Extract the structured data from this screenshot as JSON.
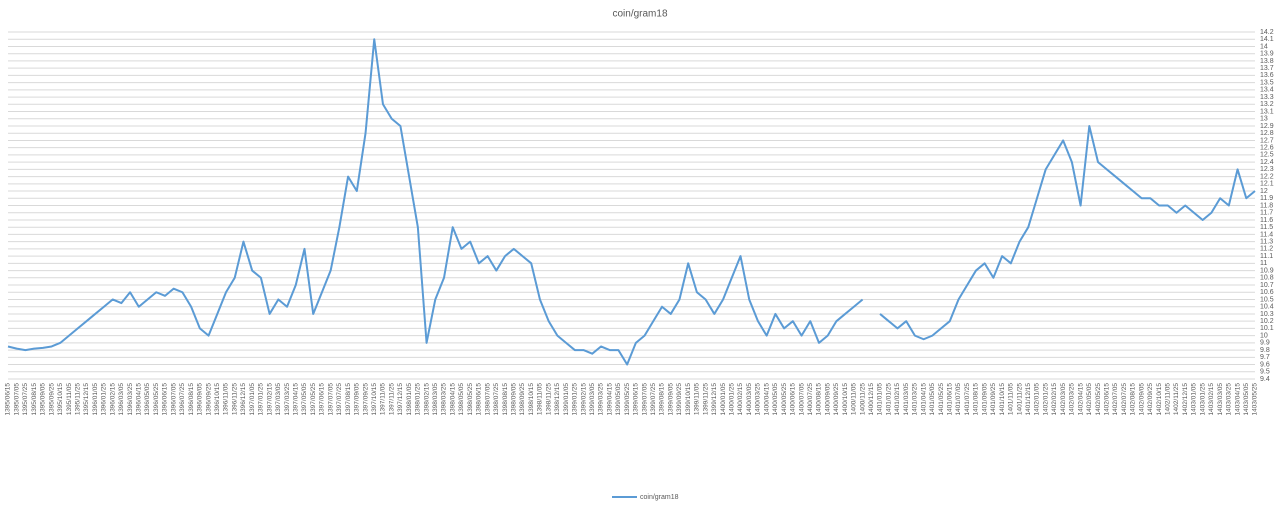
{
  "chart_data": {
    "type": "line",
    "title": "coin/gram18",
    "categories": [
      "1395/06/15",
      "1395/07/05",
      "1395/07/25",
      "1395/08/15",
      "1395/09/05",
      "1395/09/25",
      "1395/10/15",
      "1395/11/05",
      "1395/11/25",
      "1395/12/15",
      "1396/01/05",
      "1396/01/25",
      "1396/02/15",
      "1396/03/05",
      "1396/03/25",
      "1396/04/15",
      "1396/05/05",
      "1396/05/25",
      "1396/06/15",
      "1396/07/05",
      "1396/07/25",
      "1396/08/15",
      "1396/09/05",
      "1396/09/25",
      "1396/10/15",
      "1396/11/05",
      "1396/11/25",
      "1396/12/15",
      "1397/01/05",
      "1397/01/25",
      "1397/02/15",
      "1397/03/05",
      "1397/03/25",
      "1397/04/15",
      "1397/05/05",
      "1397/05/25",
      "1397/06/15",
      "1397/07/05",
      "1397/07/25",
      "1397/08/15",
      "1397/09/05",
      "1397/09/25",
      "1397/10/15",
      "1397/11/05",
      "1397/11/25",
      "1397/12/15",
      "1398/01/05",
      "1398/01/25",
      "1398/02/15",
      "1398/03/05",
      "1398/03/25",
      "1398/04/15",
      "1398/05/05",
      "1398/05/25",
      "1398/06/15",
      "1398/07/05",
      "1398/07/25",
      "1398/08/15",
      "1398/09/05",
      "1398/09/25",
      "1398/10/15",
      "1398/11/05",
      "1398/11/25",
      "1398/12/15",
      "1399/01/05",
      "1399/01/25",
      "1399/02/15",
      "1399/03/05",
      "1399/03/25",
      "1399/04/15",
      "1399/05/05",
      "1399/05/25",
      "1399/06/15",
      "1399/07/05",
      "1399/07/25",
      "1399/08/15",
      "1399/09/05",
      "1399/09/25",
      "1399/10/15",
      "1399/11/05",
      "1399/11/25",
      "1399/12/15",
      "1400/01/05",
      "1400/01/25",
      "1400/02/15",
      "1400/03/05",
      "1400/03/25",
      "1400/04/15",
      "1400/05/05",
      "1400/05/25",
      "1400/06/15",
      "1400/07/05",
      "1400/07/25",
      "1400/08/15",
      "1400/09/05",
      "1400/09/25",
      "1400/10/15",
      "1400/11/05",
      "1400/11/25",
      "1400/12/15",
      "1401/01/05",
      "1401/01/25",
      "1401/02/15",
      "1401/03/05",
      "1401/03/25",
      "1401/04/15",
      "1401/05/05",
      "1401/05/25",
      "1401/06/15",
      "1401/07/05",
      "1401/07/25",
      "1401/08/15",
      "1401/09/05",
      "1401/09/25",
      "1401/10/15",
      "1401/11/05",
      "1401/11/25",
      "1401/12/15",
      "1402/01/05",
      "1402/01/25",
      "1402/02/15",
      "1402/03/05",
      "1402/03/25",
      "1402/04/15",
      "1402/05/05",
      "1402/05/25",
      "1402/06/15",
      "1402/07/05",
      "1402/07/25",
      "1402/08/15",
      "1402/09/05",
      "1402/09/25",
      "1402/10/15",
      "1402/11/05",
      "1402/11/25",
      "1402/12/15",
      "1403/01/05",
      "1403/01/25",
      "1403/02/15",
      "1403/03/05",
      "1403/03/25",
      "1403/04/15",
      "1403/05/05",
      "1403/05/25"
    ],
    "series": [
      {
        "name": "coin/gram18",
        "color": "#5b9bd5",
        "values": [
          9.85,
          9.82,
          9.8,
          9.82,
          9.83,
          9.85,
          9.9,
          10.0,
          10.1,
          10.2,
          10.3,
          10.4,
          10.5,
          10.45,
          10.6,
          10.4,
          10.5,
          10.6,
          10.55,
          10.65,
          10.6,
          10.4,
          10.1,
          10.0,
          10.3,
          10.6,
          10.8,
          11.3,
          10.9,
          10.8,
          10.3,
          10.5,
          10.4,
          10.7,
          11.2,
          10.3,
          10.6,
          10.9,
          11.5,
          12.2,
          12.0,
          12.8,
          14.1,
          13.2,
          13.0,
          12.9,
          12.2,
          11.5,
          9.9,
          10.5,
          10.8,
          11.5,
          11.2,
          11.3,
          11.0,
          11.1,
          10.9,
          11.1,
          11.2,
          11.1,
          11.0,
          10.5,
          10.2,
          10.0,
          9.9,
          9.8,
          9.8,
          9.75,
          9.85,
          9.8,
          9.8,
          9.6,
          9.9,
          10.0,
          10.2,
          10.4,
          10.3,
          10.5,
          11.0,
          10.6,
          10.5,
          10.3,
          10.5,
          10.8,
          11.1,
          10.5,
          10.2,
          10.0,
          10.3,
          10.1,
          10.2,
          10.0,
          10.2,
          9.9,
          10.0,
          10.2,
          10.3,
          10.4,
          10.5,
          null,
          10.3,
          10.2,
          10.1,
          10.2,
          10.0,
          9.95,
          10.0,
          10.1,
          10.2,
          10.5,
          10.7,
          10.9,
          11.0,
          10.8,
          11.1,
          11.0,
          11.3,
          11.5,
          11.9,
          12.3,
          12.5,
          12.7,
          12.4,
          11.8,
          12.9,
          12.4,
          12.3,
          12.2,
          12.1,
          12.0,
          11.9,
          11.9,
          11.8,
          11.8,
          11.7,
          11.8,
          11.7,
          11.6,
          11.7,
          11.9,
          11.8,
          12.3,
          11.9,
          12.0
        ]
      }
    ],
    "ylim": [
      9.4,
      14.2
    ],
    "yticks": [
      9.4,
      9.5,
      9.6,
      9.7,
      9.8,
      9.9,
      10,
      10.1,
      10.2,
      10.3,
      10.4,
      10.5,
      10.6,
      10.7,
      10.8,
      10.9,
      11,
      11.1,
      11.2,
      11.3,
      11.4,
      11.5,
      11.6,
      11.7,
      11.8,
      11.9,
      12,
      12.1,
      12.2,
      12.3,
      12.4,
      12.5,
      12.6,
      12.7,
      12.8,
      12.9,
      13,
      13.1,
      13.2,
      13.3,
      13.4,
      13.5,
      13.6,
      13.7,
      13.8,
      13.9,
      14,
      14.1,
      14.2
    ],
    "grid": true,
    "legend": "bottom"
  }
}
